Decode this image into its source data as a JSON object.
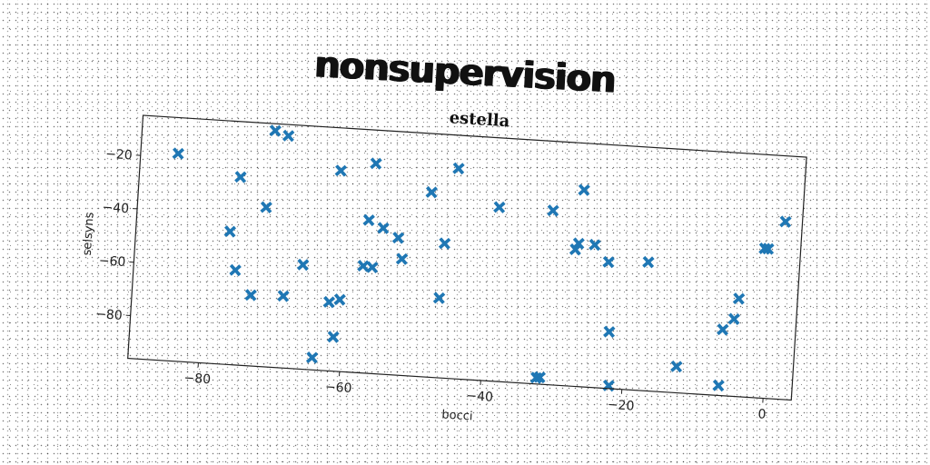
{
  "figure": {
    "title": "nonsupervision"
  },
  "chart_data": {
    "type": "scatter",
    "title": "estella",
    "xlabel": "bocci",
    "ylabel": "selsyns",
    "xlim": [
      -90,
      4
    ],
    "ylim": [
      -96,
      -5
    ],
    "xticks": [
      -80,
      -60,
      -40,
      -20,
      0
    ],
    "yticks": [
      -20,
      -40,
      -60,
      -80
    ],
    "grid": false,
    "marker": "X",
    "color": "#1f77b4",
    "x": [
      -84.7,
      -71.2,
      -69.3,
      -75.7,
      -71.8,
      -61.6,
      -56.7,
      -76.7,
      -75.6,
      -73.2,
      -68.6,
      -66.1,
      -62.1,
      -61.2,
      -60.6,
      -64.0,
      -57.2,
      -56.3,
      -57.6,
      -55.1,
      -52.9,
      -52.2,
      -48.6,
      -46.6,
      -46.3,
      -45.0,
      -38.9,
      -31.3,
      -32.2,
      -31.7,
      -27.8,
      -27.4,
      -27.1,
      -25.1,
      -23.0,
      -22.3,
      -21.9,
      -17.4,
      -12.5,
      -6.4,
      -6.3,
      -4.8,
      -4.3,
      -1.1,
      -0.6,
      1.6
    ],
    "y": [
      -18.4,
      -7.6,
      -9.2,
      -25.7,
      -36.4,
      -21.0,
      -17.5,
      -46.3,
      -60.6,
      -69.5,
      -69.1,
      -57.0,
      -70.3,
      -83.2,
      -69.1,
      -91.4,
      -38.8,
      -56.3,
      -56.0,
      -41.4,
      -44.7,
      -52.5,
      -26.9,
      -66.2,
      -45.7,
      -17.4,
      -30.9,
      -30.9,
      -93.7,
      -93.4,
      -44.9,
      -42.6,
      -22.5,
      -42.7,
      -48.8,
      -74.8,
      -94.9,
      -47.9,
      -86.2,
      -92.3,
      -71.3,
      -67.1,
      -59.4,
      -40.1,
      -40.1,
      -29.6
    ]
  }
}
